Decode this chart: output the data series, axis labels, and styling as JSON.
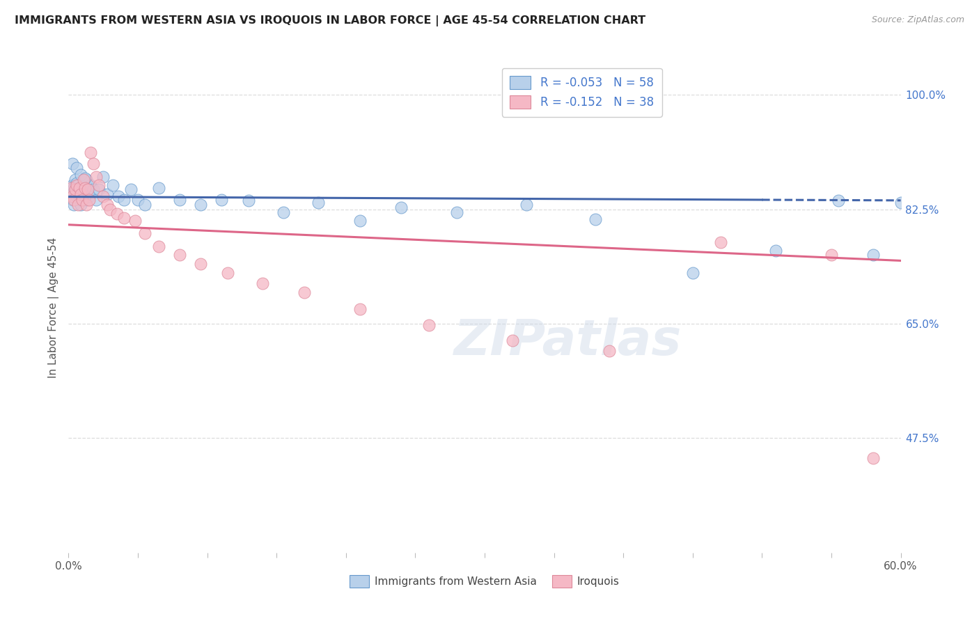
{
  "title": "IMMIGRANTS FROM WESTERN ASIA VS IROQUOIS IN LABOR FORCE | AGE 45-54 CORRELATION CHART",
  "source": "Source: ZipAtlas.com",
  "ylabel": "In Labor Force | Age 45-54",
  "xlim": [
    0.0,
    0.6
  ],
  "ylim": [
    0.3,
    1.05
  ],
  "xtick_vals": [
    0.0,
    0.05,
    0.1,
    0.15,
    0.2,
    0.25,
    0.3,
    0.35,
    0.4,
    0.45,
    0.5,
    0.55,
    0.6
  ],
  "xtick_labels_show": {
    "0.0": "0.0%",
    "0.6": "60.0%"
  },
  "ytick_labels_right": [
    "100.0%",
    "82.5%",
    "65.0%",
    "47.5%"
  ],
  "ytick_vals_right": [
    1.0,
    0.825,
    0.65,
    0.475
  ],
  "R_blue": -0.053,
  "N_blue": 58,
  "R_pink": -0.152,
  "N_pink": 38,
  "color_blue": "#b8d0ea",
  "color_blue_edge": "#6699cc",
  "color_blue_line": "#4466aa",
  "color_pink": "#f5b8c5",
  "color_pink_edge": "#dd8899",
  "color_pink_line": "#dd6688",
  "color_text_blue": "#4477cc",
  "color_grid": "#dddddd",
  "watermark": "ZIPatlas",
  "bg_color": "#ffffff",
  "dpi": 100,
  "blue_x": [
    0.001,
    0.002,
    0.003,
    0.003,
    0.004,
    0.004,
    0.005,
    0.005,
    0.006,
    0.006,
    0.007,
    0.007,
    0.008,
    0.008,
    0.009,
    0.009,
    0.01,
    0.01,
    0.011,
    0.011,
    0.012,
    0.013,
    0.013,
    0.014,
    0.015,
    0.016,
    0.018,
    0.02,
    0.022,
    0.025,
    0.028,
    0.032,
    0.036,
    0.04,
    0.045,
    0.05,
    0.055,
    0.065,
    0.08,
    0.095,
    0.11,
    0.13,
    0.155,
    0.18,
    0.21,
    0.24,
    0.28,
    0.33,
    0.38,
    0.45,
    0.51,
    0.555,
    0.58,
    0.6,
    0.003,
    0.006,
    0.009,
    0.012
  ],
  "blue_y": [
    0.855,
    0.848,
    0.862,
    0.84,
    0.858,
    0.832,
    0.855,
    0.87,
    0.845,
    0.865,
    0.85,
    0.862,
    0.84,
    0.855,
    0.845,
    0.832,
    0.855,
    0.84,
    0.848,
    0.862,
    0.858,
    0.84,
    0.87,
    0.855,
    0.845,
    0.862,
    0.855,
    0.84,
    0.855,
    0.875,
    0.848,
    0.862,
    0.845,
    0.84,
    0.855,
    0.84,
    0.832,
    0.858,
    0.84,
    0.832,
    0.84,
    0.838,
    0.82,
    0.835,
    0.808,
    0.828,
    0.82,
    0.832,
    0.81,
    0.728,
    0.762,
    0.838,
    0.755,
    0.835,
    0.895,
    0.888,
    0.878,
    0.872
  ],
  "pink_x": [
    0.002,
    0.003,
    0.004,
    0.005,
    0.006,
    0.007,
    0.008,
    0.009,
    0.01,
    0.011,
    0.012,
    0.013,
    0.014,
    0.015,
    0.016,
    0.018,
    0.02,
    0.022,
    0.025,
    0.028,
    0.03,
    0.035,
    0.04,
    0.048,
    0.055,
    0.065,
    0.08,
    0.095,
    0.115,
    0.14,
    0.17,
    0.21,
    0.26,
    0.32,
    0.39,
    0.47,
    0.55,
    0.58
  ],
  "pink_y": [
    0.858,
    0.845,
    0.84,
    0.855,
    0.862,
    0.832,
    0.858,
    0.848,
    0.84,
    0.87,
    0.858,
    0.832,
    0.855,
    0.84,
    0.912,
    0.895,
    0.875,
    0.862,
    0.845,
    0.832,
    0.825,
    0.818,
    0.812,
    0.808,
    0.788,
    0.768,
    0.755,
    0.742,
    0.728,
    0.712,
    0.698,
    0.672,
    0.648,
    0.625,
    0.608,
    0.775,
    0.755,
    0.445
  ]
}
